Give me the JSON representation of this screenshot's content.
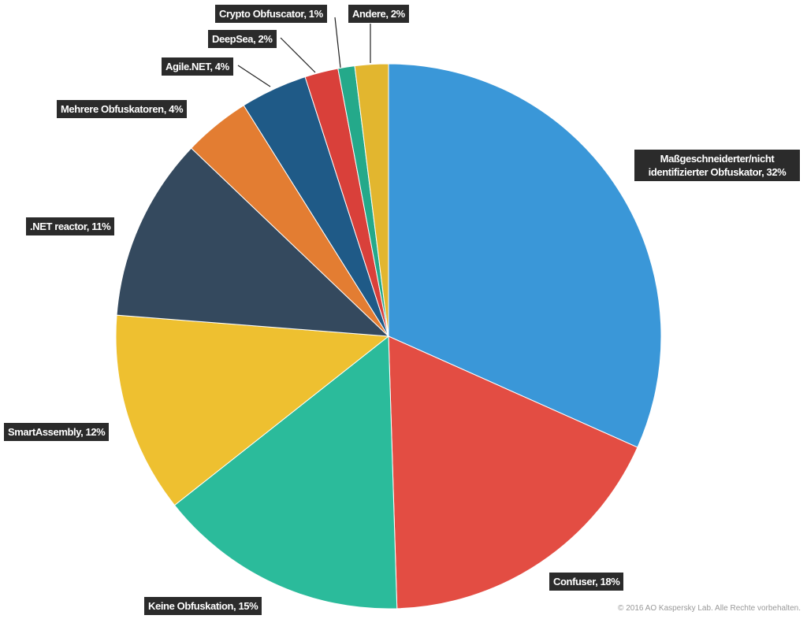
{
  "chart_data": {
    "type": "pie",
    "categories": [
      "Maßgeschneiderter/nicht identifizierter Obfuskator, 32%",
      "Confuser, 18%",
      "Keine Obfuskation, 15%",
      "SmartAssembly, 12%",
      ".NET reactor, 11%",
      "Mehrere Obfuskatoren, 4%",
      "Agile.NET, 4%",
      "DeepSea, 2%",
      "Crypto Obfuscator, 1%",
      "Andere, 2%"
    ],
    "values": [
      32,
      18,
      15,
      12,
      11,
      4,
      4,
      2,
      1,
      2
    ],
    "colors": [
      "#3a97d8",
      "#e34d43",
      "#2bbb9b",
      "#eec030",
      "#34495e",
      "#e37d32",
      "#1f5a87",
      "#d9403a",
      "#24a98a",
      "#e2b62f"
    ],
    "copyright": "© 2016 AO Kaspersky Lab. Alle Rechte vorbehalten."
  }
}
